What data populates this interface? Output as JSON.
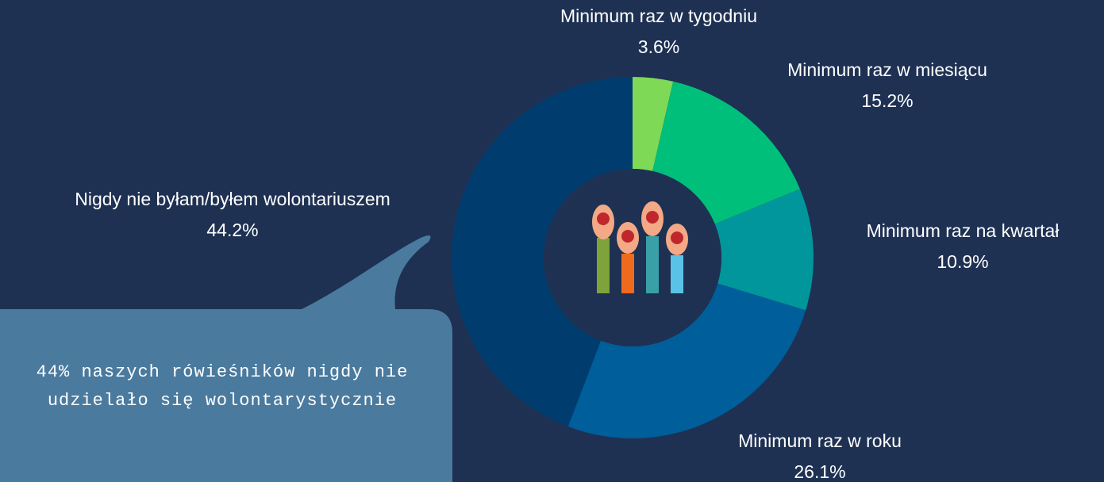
{
  "chart_data": {
    "type": "donut",
    "categories": [
      "Minimum raz w tygodniu",
      "Minimum raz w miesiącu",
      "Minimum raz na kwartał",
      "Minimum raz w roku",
      "Nigdy nie byłam/byłem wolontariuszem"
    ],
    "values": [
      3.6,
      15.2,
      10.9,
      26.1,
      44.2
    ],
    "value_labels": [
      "3.6%",
      "15.2%",
      "10.9%",
      "26.1%",
      "44.2%"
    ],
    "colors": [
      "#7ed957",
      "#00bf7a",
      "#00969b",
      "#005e9a",
      "#003d6e"
    ],
    "annotation": "44% naszych rówieśników nigdy nie udzielało się wolontarystycznie"
  }
}
